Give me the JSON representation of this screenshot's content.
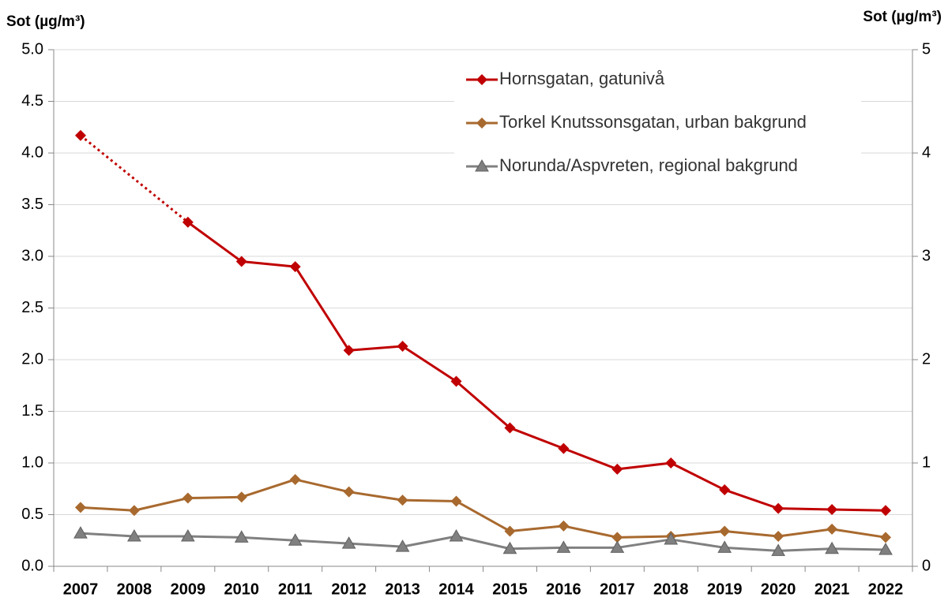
{
  "chart_data": {
    "type": "line",
    "y_label": "Sot (µg/m³)",
    "y2_label": "Sot (µg/m³)",
    "categories": [
      "2007",
      "2008",
      "2009",
      "2010",
      "2011",
      "2012",
      "2013",
      "2014",
      "2015",
      "2016",
      "2017",
      "2018",
      "2019",
      "2020",
      "2021",
      "2022"
    ],
    "series": [
      {
        "name": "Hornsgatan, gatunivå",
        "color": "#c00000",
        "marker": "diamond",
        "values": [
          4.17,
          null,
          3.33,
          2.95,
          2.9,
          2.09,
          2.13,
          1.79,
          1.34,
          1.14,
          0.94,
          1.0,
          0.74,
          0.56,
          0.55,
          0.54
        ]
      },
      {
        "name": "Torkel Knutssonsgatan, urban bakgrund",
        "color": "#a8692e",
        "marker": "diamond",
        "values": [
          0.57,
          0.54,
          0.66,
          0.67,
          0.84,
          0.72,
          0.64,
          0.63,
          0.34,
          0.39,
          0.28,
          0.29,
          0.34,
          0.29,
          0.36,
          0.28
        ]
      },
      {
        "name": "Norunda/Aspvreten, regional bakgrund",
        "color": "#808080",
        "marker": "triangle",
        "values": [
          0.32,
          0.29,
          0.29,
          0.28,
          0.25,
          0.22,
          0.19,
          0.29,
          0.17,
          0.18,
          0.18,
          0.26,
          0.18,
          0.15,
          0.17,
          0.16
        ]
      }
    ],
    "gap_line": "dotted",
    "ylim": [
      0,
      5
    ],
    "yticks": [
      {
        "value": 0,
        "label": "0.0"
      },
      0.5,
      {
        "value": 1,
        "label": "1.0"
      },
      1.5,
      {
        "value": 2,
        "label": "2.0"
      },
      2.5,
      {
        "value": 3,
        "label": "3.0"
      },
      3.5,
      {
        "value": 4,
        "label": "4.0"
      },
      4.5,
      {
        "value": 5,
        "label": "5.0"
      }
    ],
    "y2lim": [
      0,
      5
    ],
    "y2ticks": [
      0,
      1,
      2,
      3,
      4,
      5
    ],
    "grid": true,
    "legend": "top-right"
  }
}
